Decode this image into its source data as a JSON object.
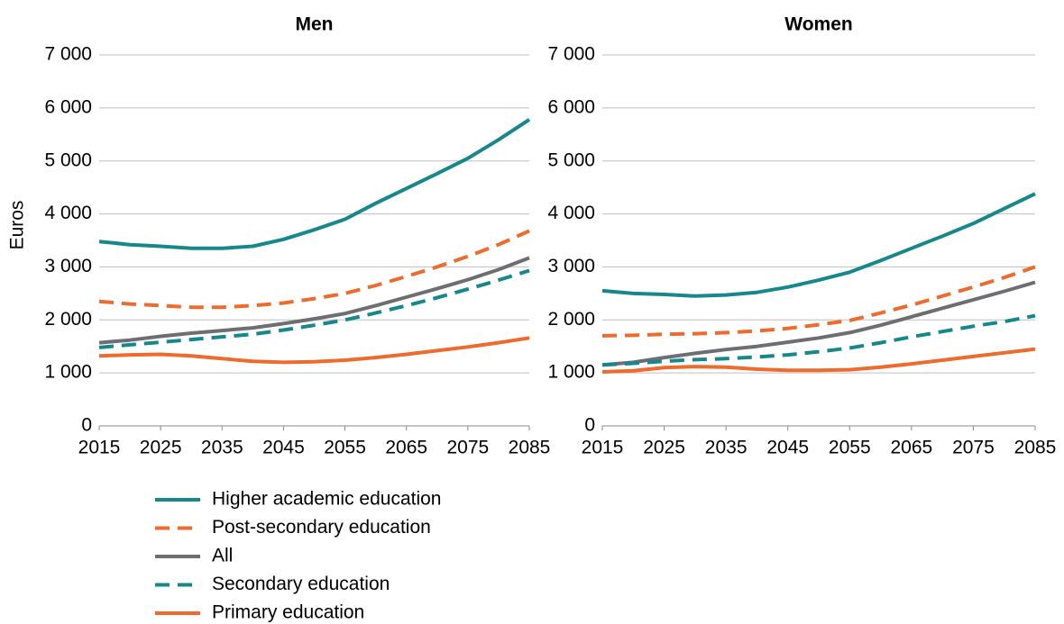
{
  "chart_data": [
    {
      "type": "line",
      "title": "Men",
      "y_label": "Euros",
      "x": [
        2015,
        2020,
        2025,
        2030,
        2035,
        2040,
        2045,
        2050,
        2055,
        2060,
        2065,
        2070,
        2075,
        2080,
        2085
      ],
      "xlim": [
        2015,
        2085
      ],
      "xticks": [
        2015,
        2025,
        2035,
        2045,
        2055,
        2065,
        2075,
        2085
      ],
      "ylim": [
        0,
        7000
      ],
      "yticks": [
        0,
        {
          "value": 1000,
          "label": "1 000"
        },
        {
          "value": 2000,
          "label": "2 000"
        },
        {
          "value": 3000,
          "label": "3 000"
        },
        {
          "value": 4000,
          "label": "4 000"
        },
        {
          "value": 5000,
          "label": "5 000"
        },
        {
          "value": 6000,
          "label": "6 000"
        },
        {
          "value": 7000,
          "label": "7 000"
        }
      ],
      "grid": true,
      "series": [
        {
          "name": "Higher academic education",
          "color": "#16888b",
          "dash": false,
          "values": [
            3480,
            3420,
            3390,
            3350,
            3350,
            3390,
            3520,
            3700,
            3900,
            4200,
            4480,
            4760,
            5050,
            5400,
            5780
          ]
        },
        {
          "name": "Post-secondary education",
          "color": "#ed6b2c",
          "dash": true,
          "values": [
            2350,
            2300,
            2270,
            2240,
            2240,
            2270,
            2320,
            2400,
            2500,
            2650,
            2820,
            3000,
            3200,
            3420,
            3680
          ]
        },
        {
          "name": "All",
          "color": "#6d6e71",
          "dash": false,
          "values": [
            1570,
            1620,
            1690,
            1750,
            1800,
            1850,
            1930,
            2020,
            2120,
            2270,
            2430,
            2590,
            2760,
            2950,
            3170
          ]
        },
        {
          "name": "Secondary education",
          "color": "#16888b",
          "dash": true,
          "values": [
            1480,
            1530,
            1580,
            1630,
            1680,
            1730,
            1810,
            1900,
            2000,
            2130,
            2270,
            2420,
            2580,
            2750,
            2930
          ]
        },
        {
          "name": "Primary education",
          "color": "#ed6b2c",
          "dash": false,
          "values": [
            1320,
            1340,
            1350,
            1320,
            1270,
            1220,
            1200,
            1210,
            1240,
            1290,
            1350,
            1420,
            1490,
            1570,
            1660
          ]
        }
      ]
    },
    {
      "type": "line",
      "title": "Women",
      "x": [
        2015,
        2020,
        2025,
        2030,
        2035,
        2040,
        2045,
        2050,
        2055,
        2060,
        2065,
        2070,
        2075,
        2080,
        2085
      ],
      "xlim": [
        2015,
        2085
      ],
      "xticks": [
        2015,
        2025,
        2035,
        2045,
        2055,
        2065,
        2075,
        2085
      ],
      "ylim": [
        0,
        7000
      ],
      "yticks": [
        0,
        {
          "value": 1000,
          "label": "1 000"
        },
        {
          "value": 2000,
          "label": "2 000"
        },
        {
          "value": 3000,
          "label": "3 000"
        },
        {
          "value": 4000,
          "label": "4 000"
        },
        {
          "value": 5000,
          "label": "5 000"
        },
        {
          "value": 6000,
          "label": "6 000"
        },
        {
          "value": 7000,
          "label": "7 000"
        }
      ],
      "grid": true,
      "series": [
        {
          "color": "#16888b",
          "dash": false,
          "values": [
            2550,
            2500,
            2480,
            2450,
            2470,
            2520,
            2620,
            2750,
            2900,
            3120,
            3350,
            3580,
            3820,
            4100,
            4380
          ]
        },
        {
          "color": "#ed6b2c",
          "dash": true,
          "values": [
            1700,
            1710,
            1730,
            1740,
            1760,
            1790,
            1840,
            1910,
            1990,
            2130,
            2280,
            2450,
            2620,
            2800,
            3000
          ]
        },
        {
          "color": "#6d6e71",
          "dash": false,
          "values": [
            1150,
            1200,
            1290,
            1370,
            1440,
            1500,
            1580,
            1660,
            1760,
            1900,
            2060,
            2220,
            2380,
            2540,
            2710
          ]
        },
        {
          "color": "#16888b",
          "dash": true,
          "values": [
            1150,
            1180,
            1220,
            1250,
            1270,
            1300,
            1340,
            1400,
            1470,
            1570,
            1680,
            1780,
            1880,
            1970,
            2080
          ]
        },
        {
          "color": "#ed6b2c",
          "dash": false,
          "values": [
            1020,
            1040,
            1100,
            1120,
            1110,
            1070,
            1050,
            1050,
            1060,
            1110,
            1170,
            1240,
            1310,
            1380,
            1450
          ]
        }
      ]
    }
  ]
}
